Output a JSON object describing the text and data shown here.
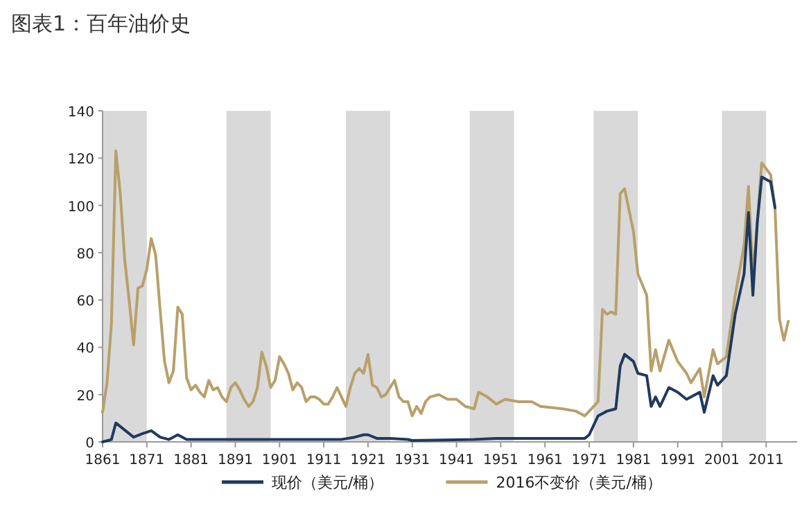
{
  "chart_data": {
    "type": "line",
    "title": "图表1：百年油价史",
    "xlim": [
      1861,
      2018
    ],
    "xticks": [
      1861,
      1871,
      1881,
      1891,
      1901,
      1911,
      1921,
      1931,
      1941,
      1951,
      1961,
      1971,
      1981,
      1991,
      2001,
      2011
    ],
    "ylim": [
      0,
      140
    ],
    "yticks": [
      0,
      20,
      40,
      60,
      80,
      100,
      120,
      140
    ],
    "grid": false,
    "legend": "bottom",
    "marker": "none",
    "line_style": "solid",
    "bands": [
      {
        "axis": "x",
        "from": 1861,
        "to": 1871,
        "color": "#d9d9d9"
      },
      {
        "axis": "x",
        "from": 1889,
        "to": 1899,
        "color": "#d9d9d9"
      },
      {
        "axis": "x",
        "from": 1916,
        "to": 1926,
        "color": "#d9d9d9"
      },
      {
        "axis": "x",
        "from": 1944,
        "to": 1954,
        "color": "#d9d9d9"
      },
      {
        "axis": "x",
        "from": 1972,
        "to": 1982,
        "color": "#d9d9d9"
      },
      {
        "axis": "x",
        "from": 2001,
        "to": 2011,
        "color": "#d9d9d9"
      }
    ],
    "series": [
      {
        "name": "现价（美元/桶）",
        "color": "#1f3a5f",
        "x": [
          1861,
          1863,
          1864,
          1866,
          1868,
          1870,
          1872,
          1874,
          1876,
          1878,
          1880,
          1890,
          1900,
          1915,
          1918,
          1920,
          1921,
          1923,
          1926,
          1930,
          1931,
          1945,
          1950,
          1970,
          1971,
          1973,
          1975,
          1977,
          1978,
          1979,
          1981,
          1982,
          1984,
          1985,
          1986,
          1987,
          1989,
          1991,
          1993,
          1996,
          1997,
          1999,
          2000,
          2002,
          2004,
          2006,
          2007,
          2008,
          2009,
          2010,
          2012,
          2013
        ],
        "values": [
          0,
          1,
          8,
          5,
          2,
          3.5,
          4.7,
          2,
          1,
          3,
          1,
          1,
          1,
          1,
          2,
          3,
          3,
          1.5,
          1.5,
          1,
          0.6,
          1,
          1.5,
          1.5,
          3,
          11,
          13,
          14,
          32,
          37,
          34,
          29,
          28,
          15,
          19,
          15,
          23,
          21,
          18,
          21,
          12.5,
          28,
          24,
          28,
          54,
          71,
          97,
          62,
          93,
          112,
          110,
          99
        ]
      },
      {
        "name": "2016不变价（美元/桶）",
        "color": "#b8a06a",
        "x": [
          1861,
          1862,
          1863,
          1864,
          1865,
          1866,
          1867,
          1868,
          1869,
          1870,
          1871,
          1872,
          1873,
          1874,
          1875,
          1876,
          1877,
          1878,
          1879,
          1880,
          1881,
          1882,
          1883,
          1884,
          1885,
          1886,
          1887,
          1888,
          1889,
          1890,
          1891,
          1892,
          1893,
          1894,
          1895,
          1896,
          1897,
          1898,
          1899,
          1900,
          1901,
          1902,
          1903,
          1904,
          1905,
          1906,
          1907,
          1908,
          1909,
          1910,
          1911,
          1912,
          1913,
          1914,
          1915,
          1916,
          1917,
          1918,
          1919,
          1920,
          1921,
          1922,
          1923,
          1924,
          1925,
          1926,
          1927,
          1928,
          1929,
          1930,
          1931,
          1932,
          1933,
          1934,
          1935,
          1937,
          1939,
          1941,
          1943,
          1945,
          1946,
          1948,
          1950,
          1952,
          1955,
          1958,
          1960,
          1965,
          1968,
          1970,
          1972,
          1973,
          1974,
          1975,
          1976,
          1977,
          1978,
          1979,
          1981,
          1982,
          1984,
          1985,
          1986,
          1987,
          1989,
          1991,
          1993,
          1994,
          1996,
          1997,
          1999,
          2000,
          2002,
          2004,
          2006,
          2007,
          2008,
          2009,
          2010,
          2012,
          2013,
          2014,
          2015,
          2016
        ],
        "values": [
          12.5,
          25,
          50,
          123,
          105,
          77,
          60,
          41,
          65,
          66,
          73,
          86,
          79,
          56,
          34,
          25,
          30,
          57,
          54,
          27,
          22,
          24,
          21,
          19,
          26,
          22,
          23,
          19,
          17,
          23,
          25,
          22,
          18,
          15,
          17,
          23,
          38,
          32,
          23,
          26,
          36,
          33,
          29,
          22,
          25,
          23,
          17,
          19,
          19,
          18,
          16,
          16,
          19,
          23,
          19,
          15,
          23,
          29,
          31,
          29,
          37,
          24,
          23,
          19,
          20,
          23,
          26,
          19,
          17,
          17,
          11,
          15,
          12,
          17,
          19,
          20,
          18,
          18,
          15,
          14,
          21,
          19,
          16,
          18,
          17,
          17,
          15,
          14,
          13,
          11,
          15,
          17,
          56,
          54,
          55,
          54,
          105,
          107,
          89,
          71,
          62,
          30,
          39,
          30,
          43,
          34,
          29,
          25,
          31,
          19,
          39,
          33,
          36,
          62,
          83,
          108,
          70,
          93,
          118,
          113,
          99,
          52,
          43,
          51
        ]
      }
    ]
  }
}
